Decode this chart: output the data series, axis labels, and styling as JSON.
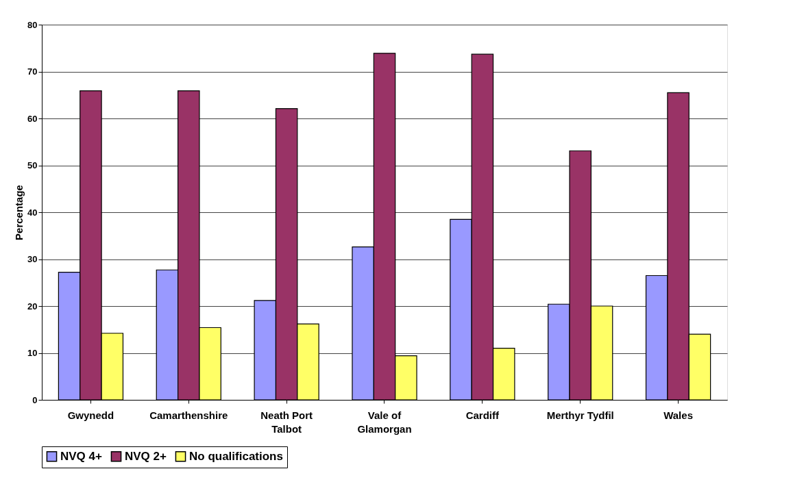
{
  "chart_data": {
    "type": "bar",
    "ylabel": "Percentage",
    "categories": [
      "Gwynedd",
      "Camarthenshire",
      "Neath Port Talbot",
      "Vale of Glamorgan",
      "Cardiff",
      "Merthyr Tydfil",
      "Wales"
    ],
    "series": [
      {
        "name": "NVQ 4+",
        "color": "#9999ff",
        "values": [
          27.2,
          27.7,
          21.2,
          32.6,
          38.5,
          20.4,
          26.5
        ]
      },
      {
        "name": "NVQ 2+",
        "color": "#993366",
        "values": [
          65.9,
          65.9,
          62.1,
          73.9,
          73.7,
          53.1,
          65.5
        ]
      },
      {
        "name": "No qualifications",
        "color": "#ffff66",
        "values": [
          14.2,
          15.4,
          16.2,
          9.4,
          11.0,
          20.0,
          14.0
        ]
      }
    ],
    "ylim": [
      0,
      80
    ],
    "yticks": [
      0,
      10,
      20,
      30,
      40,
      50,
      60,
      70,
      80
    ],
    "grid": "y",
    "legend": "bottom"
  }
}
